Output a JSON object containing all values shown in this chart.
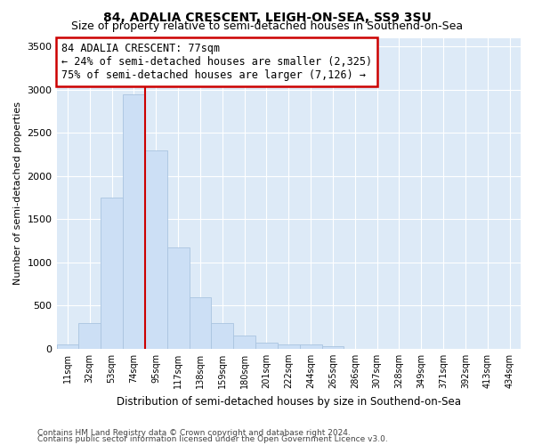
{
  "title": "84, ADALIA CRESCENT, LEIGH-ON-SEA, SS9 3SU",
  "subtitle": "Size of property relative to semi-detached houses in Southend-on-Sea",
  "xlabel": "Distribution of semi-detached houses by size in Southend-on-Sea",
  "ylabel": "Number of semi-detached properties",
  "footnote1": "Contains HM Land Registry data © Crown copyright and database right 2024.",
  "footnote2": "Contains public sector information licensed under the Open Government Licence v3.0.",
  "bin_labels": [
    "11sqm",
    "32sqm",
    "53sqm",
    "74sqm",
    "95sqm",
    "117sqm",
    "138sqm",
    "159sqm",
    "180sqm",
    "201sqm",
    "222sqm",
    "244sqm",
    "265sqm",
    "286sqm",
    "307sqm",
    "328sqm",
    "349sqm",
    "371sqm",
    "392sqm",
    "413sqm",
    "434sqm"
  ],
  "bar_heights": [
    50,
    300,
    1750,
    2950,
    2300,
    1175,
    600,
    300,
    150,
    75,
    50,
    50,
    30,
    0,
    0,
    0,
    0,
    0,
    0,
    0,
    0
  ],
  "bar_color": "#ccdff5",
  "bar_edge_color": "#aac4e0",
  "vline_x": 3.5,
  "vline_color": "#cc0000",
  "annotation_text": "84 ADALIA CRESCENT: 77sqm\n← 24% of semi-detached houses are smaller (2,325)\n75% of semi-detached houses are larger (7,126) →",
  "annotation_box_color": "#ffffff",
  "annotation_box_edge": "#cc0000",
  "ylim": [
    0,
    3600
  ],
  "yticks": [
    0,
    500,
    1000,
    1500,
    2000,
    2500,
    3000,
    3500
  ],
  "plot_bg_color": "#ddeaf7",
  "title_fontsize": 10,
  "subtitle_fontsize": 9,
  "grid_color": "#ffffff",
  "annot_fontsize": 8.5
}
